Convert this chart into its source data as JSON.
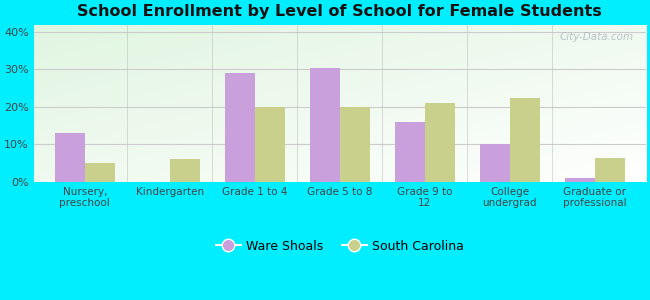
{
  "title": "School Enrollment by Level of School for Female Students",
  "categories": [
    "Nursery,\npreschool",
    "Kindergarten",
    "Grade 1 to 4",
    "Grade 5 to 8",
    "Grade 9 to\n12",
    "College\nundergrad",
    "Graduate or\nprofessional"
  ],
  "ware_shoals": [
    13.0,
    0.0,
    29.0,
    30.5,
    16.0,
    10.0,
    1.0
  ],
  "south_carolina": [
    5.0,
    6.0,
    20.0,
    20.0,
    21.0,
    22.5,
    6.5
  ],
  "ware_shoals_color": "#c9a0dc",
  "south_carolina_color": "#c8d08c",
  "background_outer": "#00eeff",
  "ylim": [
    0,
    42
  ],
  "yticks": [
    0,
    10,
    20,
    30,
    40
  ],
  "ytick_labels": [
    "0%",
    "10%",
    "20%",
    "30%",
    "40%"
  ],
  "bar_width": 0.35,
  "legend_ware_shoals": "Ware Shoals",
  "legend_south_carolina": "South Carolina",
  "watermark": "City-Data.com"
}
